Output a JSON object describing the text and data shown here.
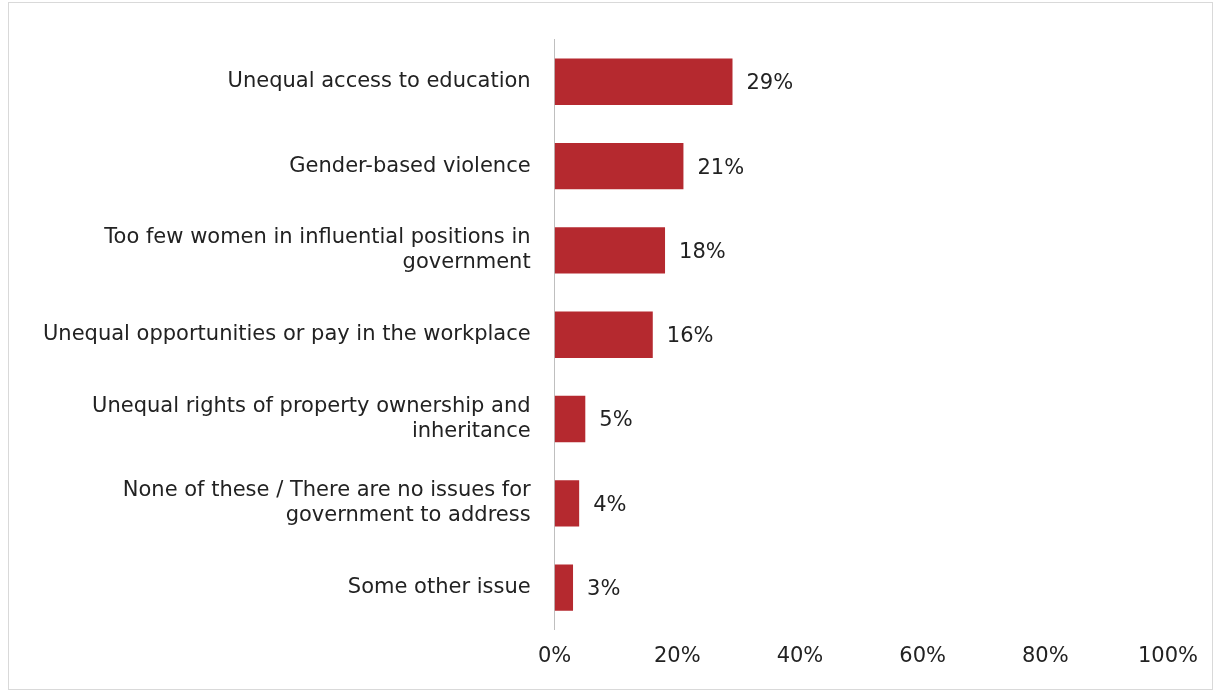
{
  "chart_data": {
    "type": "bar",
    "orientation": "horizontal",
    "categories": [
      "Unequal access to education",
      "Gender-based violence",
      "Too few women in influential positions in government",
      "Unequal opportunities or pay in the workplace",
      "Unequal rights of property ownership and inheritance",
      "None of these / There are no issues for government to address",
      "Some other issue"
    ],
    "values": [
      29,
      21,
      18,
      16,
      5,
      4,
      3
    ],
    "value_labels": [
      "29%",
      "21%",
      "18%",
      "16%",
      "5%",
      "4%",
      "3%"
    ],
    "color": "#b5292f",
    "xlim": [
      0,
      100
    ],
    "xticks": [
      {
        "value": 0,
        "label": "0%"
      },
      {
        "value": 20,
        "label": "20%"
      },
      {
        "value": 40,
        "label": "40%"
      },
      {
        "value": 60,
        "label": "60%"
      },
      {
        "value": 80,
        "label": "80%"
      },
      {
        "value": 100,
        "label": "100%"
      }
    ],
    "grid": false,
    "legend": false
  }
}
